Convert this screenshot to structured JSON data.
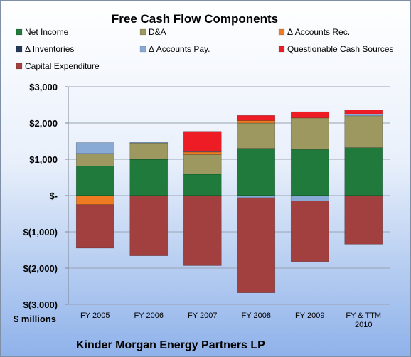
{
  "chart_data": {
    "type": "bar",
    "stacked": true,
    "title": "Free Cash Flow Components",
    "subtitle": "Kinder Morgan Energy Partners LP",
    "unit_label": "$ millions",
    "categories": [
      "FY 2005",
      "FY 2006",
      "FY 2007",
      "FY 2008",
      "FY 2009",
      "FY & TTM\n2010"
    ],
    "ylim": [
      -3000,
      3000
    ],
    "y_ticks": [
      3000,
      2000,
      1000,
      0,
      -1000,
      -2000,
      -3000
    ],
    "y_tick_labels": [
      "$3,000",
      "$2,000",
      "$1,000",
      "$-",
      "$(1,000)",
      "$(2,000)",
      "$(3,000)"
    ],
    "grid": true,
    "legend_position": "top",
    "series": [
      {
        "name": "Net Income",
        "color": "#1f7a3c",
        "values": [
          810,
          1000,
          590,
          1300,
          1270,
          1320
        ]
      },
      {
        "name": "D&A",
        "color": "#9c9860",
        "values": [
          350,
          450,
          540,
          700,
          870,
          880
        ]
      },
      {
        "name": "Δ Accounts Rec.",
        "color": "#ee7a22",
        "values": [
          -250,
          -10,
          70,
          70,
          0,
          0
        ]
      },
      {
        "name": "Δ Inventories",
        "color": "#243a5a",
        "values": [
          0,
          0,
          -10,
          0,
          0,
          0
        ]
      },
      {
        "name": "Δ Accounts Pay.",
        "color": "#8aaad6",
        "values": [
          300,
          20,
          10,
          -60,
          -150,
          50
        ]
      },
      {
        "name": "Questionable Cash Sources",
        "color": "#ee1c24",
        "values": [
          0,
          0,
          560,
          140,
          170,
          110
        ]
      },
      {
        "name": "Capital Expenditure",
        "color": "#a23f3f",
        "values": [
          -1200,
          -1650,
          -1920,
          -2620,
          -1670,
          -1340
        ]
      }
    ]
  }
}
